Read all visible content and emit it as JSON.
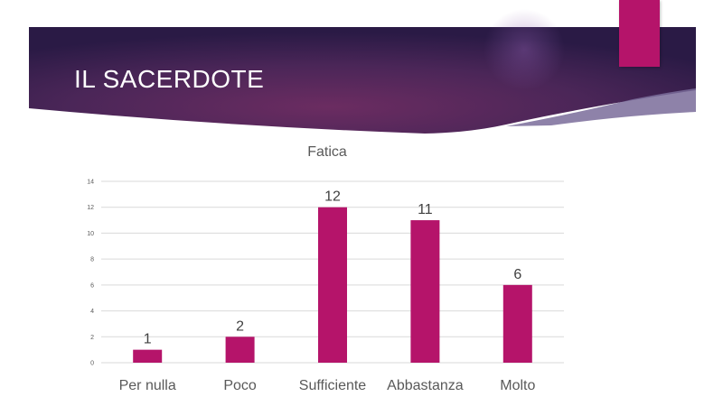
{
  "slide": {
    "title": "IL SACERDOTE"
  },
  "colors": {
    "banner_dark": "#2a1a45",
    "banner_mid": "#6b2c61",
    "accent": "#b5146a",
    "bar": "#b5146a",
    "gridline": "#d9d9d9",
    "axis_text": "#595959"
  },
  "chart_data": {
    "type": "bar",
    "title": "Fatica",
    "categories": [
      "Per nulla",
      "Poco",
      "Sufficiente",
      "Abbastanza",
      "Molto"
    ],
    "values": [
      1,
      2,
      12,
      11,
      6
    ],
    "data_labels": [
      "1",
      "2",
      "12",
      "11",
      "6"
    ],
    "y_ticks": [
      "0",
      "2",
      "4",
      "6",
      "8",
      "10",
      "12",
      "14"
    ],
    "ylim": [
      0,
      14
    ],
    "grid": true,
    "xlabel": "",
    "ylabel": ""
  }
}
